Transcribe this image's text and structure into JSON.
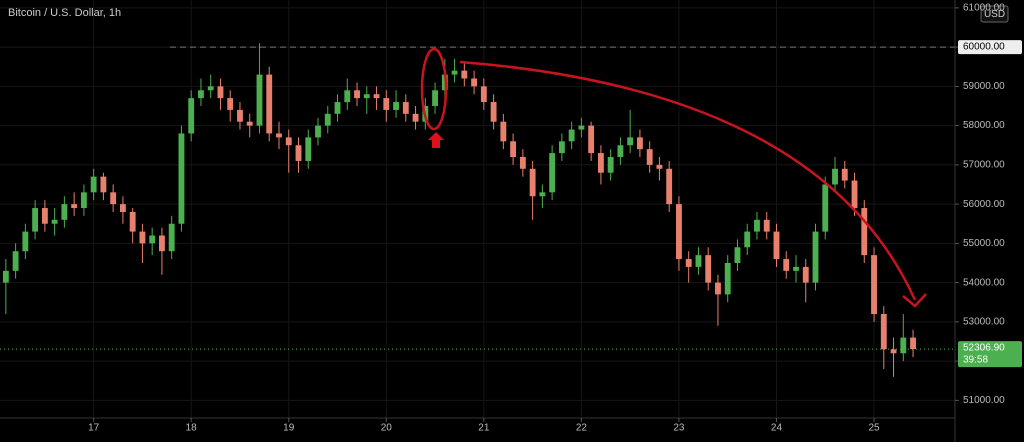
{
  "chart_data": {
    "type": "candlestick",
    "title": "Bitcoin / U.S. Dollar, 1h",
    "currency": "USD",
    "x": [
      16.1,
      16.2,
      16.3,
      16.4,
      16.5,
      16.6,
      16.7,
      16.8,
      16.9,
      17.0,
      17.1,
      17.2,
      17.3,
      17.4,
      17.5,
      17.6,
      17.7,
      17.8,
      17.9,
      18.0,
      18.1,
      18.2,
      18.3,
      18.4,
      18.5,
      18.6,
      18.7,
      18.8,
      18.9,
      19.0,
      19.1,
      19.2,
      19.3,
      19.4,
      19.5,
      19.6,
      19.7,
      19.8,
      19.9,
      20.0,
      20.1,
      20.2,
      20.3,
      20.4,
      20.5,
      20.6,
      20.7,
      20.8,
      20.9,
      21.0,
      21.1,
      21.2,
      21.3,
      21.4,
      21.5,
      21.6,
      21.7,
      21.8,
      21.9,
      22.0,
      22.1,
      22.2,
      22.3,
      22.4,
      22.5,
      22.6,
      22.7,
      22.8,
      22.9,
      23.0,
      23.1,
      23.2,
      23.3,
      23.4,
      23.5,
      23.6,
      23.7,
      23.8,
      23.9,
      24.0,
      24.1,
      24.2,
      24.3,
      24.4,
      24.5,
      24.6,
      24.7,
      24.8,
      24.9,
      25.0,
      25.1,
      25.2,
      25.3,
      25.4
    ],
    "open": [
      54000,
      54300,
      54800,
      55300,
      55900,
      55500,
      55600,
      56000,
      55900,
      56300,
      56700,
      56300,
      56000,
      55800,
      55300,
      55000,
      55200,
      54800,
      55500,
      57800,
      58700,
      58900,
      59000,
      58700,
      58400,
      58100,
      58000,
      59300,
      57800,
      57700,
      57500,
      57100,
      57700,
      58000,
      58300,
      58600,
      58900,
      58700,
      58800,
      58700,
      58400,
      58600,
      58300,
      58100,
      58500,
      58900,
      59300,
      59400,
      59200,
      59000,
      58600,
      58100,
      57600,
      57200,
      56900,
      56200,
      56300,
      57300,
      57600,
      57900,
      58000,
      57300,
      56800,
      57200,
      57500,
      57700,
      57400,
      57000,
      56900,
      56000,
      54600,
      54400,
      54700,
      54000,
      53700,
      54500,
      54900,
      55300,
      55600,
      55300,
      54600,
      54300,
      54400,
      54000,
      55300,
      56500,
      56900,
      56600,
      55900,
      54700,
      53200,
      52300,
      52200,
      52600
    ],
    "high": [
      54600,
      55000,
      55500,
      56100,
      56100,
      55900,
      56200,
      56300,
      56500,
      56900,
      56800,
      56500,
      56200,
      55900,
      55500,
      55400,
      55400,
      55700,
      58000,
      58900,
      59200,
      59300,
      59200,
      58900,
      58600,
      58300,
      60100,
      59500,
      58100,
      57900,
      57700,
      57900,
      58200,
      58500,
      58800,
      59200,
      59100,
      59000,
      59000,
      58900,
      58900,
      58800,
      58500,
      58700,
      59100,
      59700,
      59700,
      59600,
      59400,
      59200,
      58800,
      58300,
      57800,
      57400,
      57100,
      56500,
      57500,
      57800,
      58100,
      58200,
      58100,
      57500,
      57400,
      57700,
      58400,
      57900,
      57600,
      57200,
      57100,
      56200,
      54800,
      54900,
      54900,
      54200,
      54700,
      55100,
      55500,
      55800,
      55800,
      55500,
      54800,
      54700,
      54600,
      55500,
      56700,
      57200,
      57100,
      56800,
      56100,
      54900,
      53400,
      52600,
      53200,
      52800
    ],
    "low": [
      53200,
      54100,
      54600,
      55100,
      55300,
      55200,
      55400,
      55700,
      55700,
      56100,
      56100,
      55800,
      55500,
      55000,
      54500,
      54700,
      54200,
      54600,
      55300,
      57600,
      58500,
      58700,
      58400,
      58100,
      57900,
      57700,
      57800,
      57600,
      57400,
      56800,
      56800,
      56900,
      57500,
      57800,
      58100,
      58400,
      58500,
      58300,
      58400,
      58100,
      58200,
      58100,
      57900,
      57900,
      58300,
      58700,
      59100,
      59000,
      58800,
      58400,
      57900,
      57400,
      57000,
      56700,
      55600,
      55900,
      56100,
      57100,
      57400,
      57700,
      57100,
      56500,
      56600,
      57000,
      57300,
      57200,
      56800,
      56600,
      55800,
      54300,
      54000,
      54200,
      53800,
      52900,
      53500,
      54300,
      54700,
      55100,
      55100,
      54400,
      54100,
      54000,
      53500,
      53800,
      55100,
      56300,
      56400,
      55700,
      54500,
      53000,
      51800,
      51600,
      52000,
      52100
    ],
    "close": [
      54300,
      54800,
      55300,
      55900,
      55500,
      55600,
      56000,
      55900,
      56300,
      56700,
      56300,
      56000,
      55800,
      55300,
      55000,
      55200,
      54800,
      55500,
      57800,
      58700,
      58900,
      59000,
      58700,
      58400,
      58100,
      58000,
      59300,
      57800,
      57700,
      57500,
      57100,
      57700,
      58000,
      58300,
      58600,
      58900,
      58700,
      58800,
      58700,
      58400,
      58600,
      58300,
      58100,
      58500,
      58900,
      59300,
      59400,
      59200,
      59000,
      58600,
      58100,
      57600,
      57200,
      56900,
      56200,
      56300,
      57300,
      57600,
      57900,
      58000,
      57300,
      56800,
      57200,
      57500,
      57700,
      57400,
      57000,
      56900,
      56000,
      54600,
      54400,
      54700,
      54000,
      53700,
      54500,
      54900,
      55300,
      55600,
      55300,
      54600,
      54300,
      54400,
      54000,
      55300,
      56500,
      56900,
      56600,
      55900,
      54700,
      53200,
      52300,
      52200,
      52600,
      52306.9
    ],
    "up_color": "#4caf50",
    "down_color": "#e8806e",
    "xlim": [
      16.04,
      25.83
    ],
    "xticks": [
      17,
      18,
      19,
      20,
      21,
      22,
      23,
      24,
      25
    ],
    "ylim": [
      50500,
      61200
    ],
    "yticks": [
      {
        "value": 51000,
        "label": "51000.00"
      },
      {
        "value": 52000,
        "label": "52000.00"
      },
      {
        "value": 53000,
        "label": "53000.00"
      },
      {
        "value": 54000,
        "label": "54000.00"
      },
      {
        "value": 55000,
        "label": "55000.00"
      },
      {
        "value": 56000,
        "label": "56000.00"
      },
      {
        "value": 57000,
        "label": "57000.00"
      },
      {
        "value": 58000,
        "label": "58000.00"
      },
      {
        "value": 59000,
        "label": "59000.00"
      },
      {
        "value": 60000,
        "label": "60000.00"
      },
      {
        "value": 61000,
        "label": "61000.00"
      }
    ],
    "grid": true,
    "price_line": {
      "value": 60000,
      "label": "60000.00"
    },
    "last": {
      "value": 52306.9,
      "label": "52306.90",
      "color": "#4caf50"
    },
    "countdown": "39:58"
  }
}
